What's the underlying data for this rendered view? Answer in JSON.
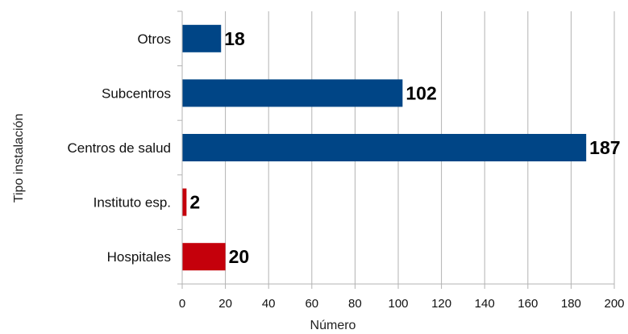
{
  "chart_data": {
    "type": "bar",
    "orientation": "horizontal",
    "categories": [
      "Otros",
      "Subcentros",
      "Centros de salud",
      "Instituto esp.",
      "Hospitales"
    ],
    "values": [
      18,
      102,
      187,
      2,
      20
    ],
    "colors": [
      "#004586",
      "#004586",
      "#004586",
      "#c5000b",
      "#c5000b"
    ],
    "xlabel": "Número",
    "ylabel": "Tipo instalación",
    "xlim": [
      0,
      200
    ],
    "x_ticks": [
      "0",
      "20",
      "40",
      "60",
      "80",
      "100",
      "120",
      "140",
      "160",
      "180",
      "200"
    ],
    "data_labels": [
      "18",
      "102",
      "187",
      "2",
      "20"
    ],
    "grid": "vertical",
    "legend": "none"
  }
}
